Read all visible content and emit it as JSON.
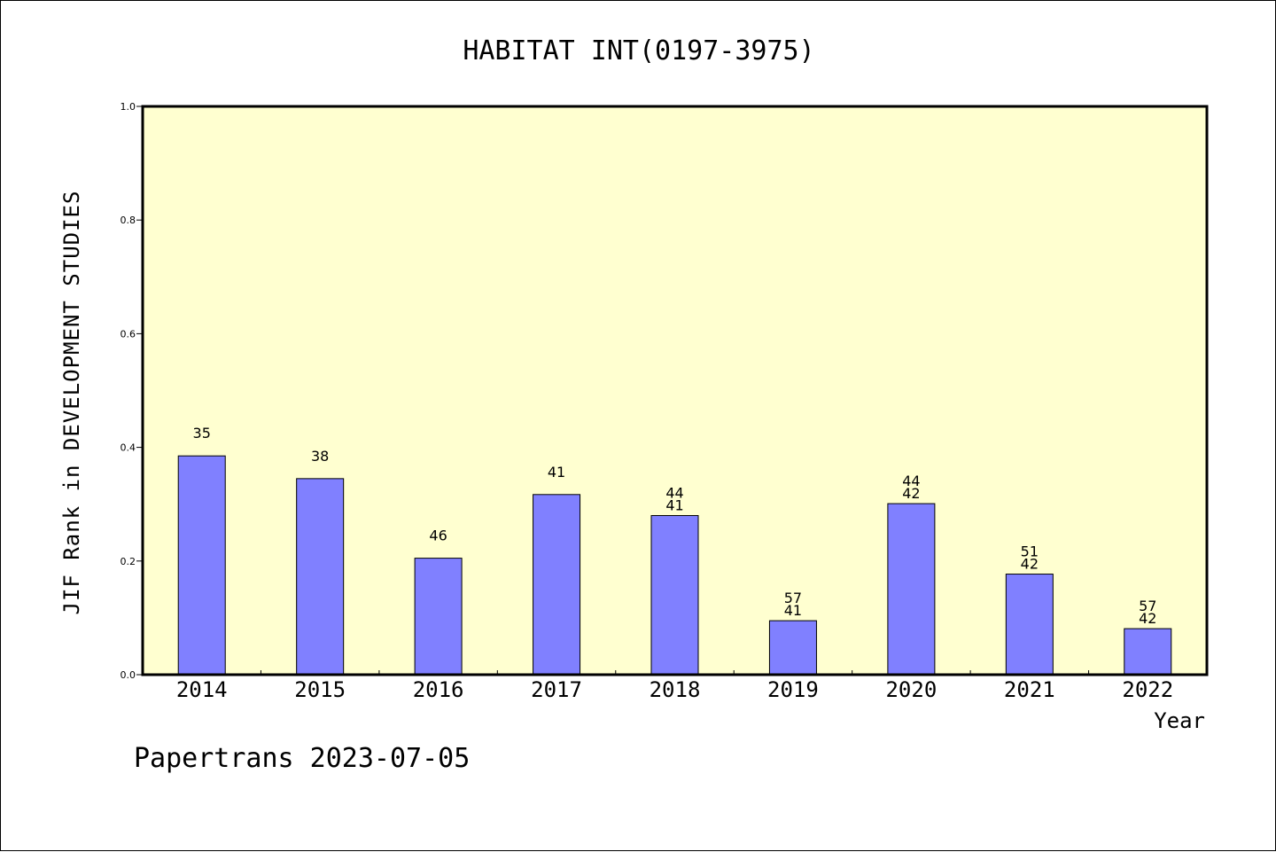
{
  "chart_data": {
    "type": "bar",
    "title": "HABITAT INT(0197-3975)",
    "xlabel": "Year",
    "ylabel": "JIF Rank in DEVELOPMENT STUDIES",
    "ylim": [
      0,
      1.0
    ],
    "yticks": [
      "0.0",
      "0.2",
      "0.4",
      "0.6",
      "0.8",
      "1.0"
    ],
    "categories": [
      "2014",
      "2015",
      "2016",
      "2017",
      "2018",
      "2019",
      "2020",
      "2021",
      "2022"
    ],
    "values": [
      0.385,
      0.345,
      0.205,
      0.317,
      0.28,
      0.095,
      0.301,
      0.177,
      0.081
    ],
    "labels": [
      [
        "35"
      ],
      [
        "38"
      ],
      [
        "46"
      ],
      [
        "41"
      ],
      [
        "44",
        "41"
      ],
      [
        "57",
        "41"
      ],
      [
        "44",
        "42"
      ],
      [
        "51",
        "42"
      ],
      [
        "57",
        "42"
      ]
    ],
    "grid": false,
    "colors": {
      "plot_background": "#FFFFD0",
      "bar_fill": "#8080FF",
      "bar_edge": "#000000"
    }
  },
  "footer": {
    "text": "Papertrans 2023-07-05"
  }
}
